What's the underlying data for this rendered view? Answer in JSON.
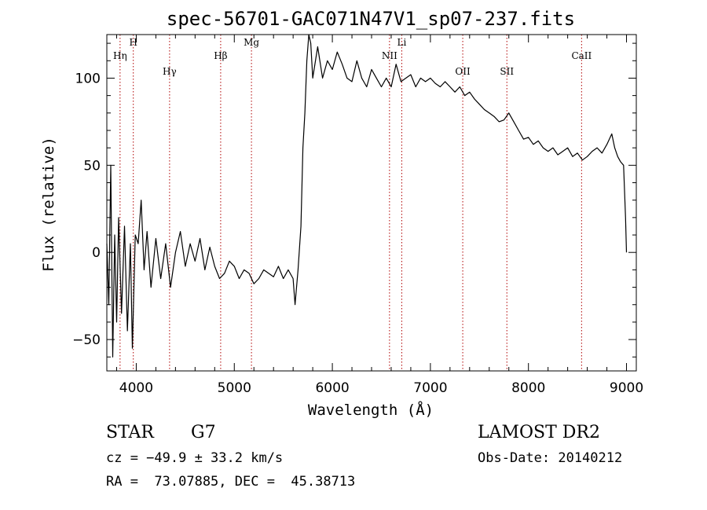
{
  "chart_data": {
    "type": "line",
    "title": "spec-56701-GAC071N47V1_sp07-237.fits",
    "xlabel": "Wavelength (Å)",
    "ylabel": "Flux (relative)",
    "xlim": [
      3700,
      9100
    ],
    "ylim": [
      -68,
      125
    ],
    "xticks": [
      4000,
      5000,
      6000,
      7000,
      8000,
      9000
    ],
    "yticks": [
      -50,
      0,
      50,
      100
    ],
    "grid": false,
    "series": [
      {
        "points": [
          [
            3700,
            5
          ],
          [
            3720,
            -30
          ],
          [
            3740,
            50
          ],
          [
            3760,
            -60
          ],
          [
            3780,
            10
          ],
          [
            3800,
            -40
          ],
          [
            3820,
            20
          ],
          [
            3850,
            -35
          ],
          [
            3880,
            15
          ],
          [
            3910,
            -45
          ],
          [
            3940,
            5
          ],
          [
            3960,
            -55
          ],
          [
            3990,
            10
          ],
          [
            4020,
            5
          ],
          [
            4050,
            30
          ],
          [
            4080,
            -10
          ],
          [
            4110,
            12
          ],
          [
            4150,
            -20
          ],
          [
            4200,
            8
          ],
          [
            4250,
            -15
          ],
          [
            4300,
            5
          ],
          [
            4350,
            -20
          ],
          [
            4400,
            0
          ],
          [
            4450,
            12
          ],
          [
            4500,
            -8
          ],
          [
            4550,
            5
          ],
          [
            4600,
            -5
          ],
          [
            4650,
            8
          ],
          [
            4700,
            -10
          ],
          [
            4750,
            3
          ],
          [
            4800,
            -8
          ],
          [
            4850,
            -15
          ],
          [
            4900,
            -12
          ],
          [
            4950,
            -5
          ],
          [
            5000,
            -8
          ],
          [
            5050,
            -15
          ],
          [
            5100,
            -10
          ],
          [
            5150,
            -12
          ],
          [
            5200,
            -18
          ],
          [
            5250,
            -15
          ],
          [
            5300,
            -10
          ],
          [
            5350,
            -12
          ],
          [
            5400,
            -14
          ],
          [
            5450,
            -8
          ],
          [
            5500,
            -15
          ],
          [
            5550,
            -10
          ],
          [
            5600,
            -15
          ],
          [
            5620,
            -30
          ],
          [
            5650,
            -10
          ],
          [
            5680,
            15
          ],
          [
            5700,
            60
          ],
          [
            5720,
            80
          ],
          [
            5740,
            110
          ],
          [
            5760,
            125
          ],
          [
            5780,
            120
          ],
          [
            5800,
            100
          ],
          [
            5850,
            118
          ],
          [
            5900,
            100
          ],
          [
            5950,
            110
          ],
          [
            6000,
            105
          ],
          [
            6050,
            115
          ],
          [
            6100,
            108
          ],
          [
            6150,
            100
          ],
          [
            6200,
            98
          ],
          [
            6250,
            110
          ],
          [
            6300,
            100
          ],
          [
            6350,
            95
          ],
          [
            6400,
            105
          ],
          [
            6450,
            100
          ],
          [
            6500,
            95
          ],
          [
            6550,
            100
          ],
          [
            6600,
            95
          ],
          [
            6650,
            108
          ],
          [
            6700,
            98
          ],
          [
            6750,
            100
          ],
          [
            6800,
            102
          ],
          [
            6850,
            95
          ],
          [
            6900,
            100
          ],
          [
            6950,
            98
          ],
          [
            7000,
            100
          ],
          [
            7050,
            97
          ],
          [
            7100,
            95
          ],
          [
            7150,
            98
          ],
          [
            7200,
            95
          ],
          [
            7250,
            92
          ],
          [
            7300,
            95
          ],
          [
            7350,
            90
          ],
          [
            7400,
            92
          ],
          [
            7450,
            88
          ],
          [
            7500,
            85
          ],
          [
            7550,
            82
          ],
          [
            7600,
            80
          ],
          [
            7650,
            78
          ],
          [
            7700,
            75
          ],
          [
            7750,
            76
          ],
          [
            7800,
            80
          ],
          [
            7850,
            75
          ],
          [
            7900,
            70
          ],
          [
            7950,
            65
          ],
          [
            8000,
            66
          ],
          [
            8050,
            62
          ],
          [
            8100,
            64
          ],
          [
            8150,
            60
          ],
          [
            8200,
            58
          ],
          [
            8250,
            60
          ],
          [
            8300,
            56
          ],
          [
            8350,
            58
          ],
          [
            8400,
            60
          ],
          [
            8450,
            55
          ],
          [
            8500,
            57
          ],
          [
            8550,
            53
          ],
          [
            8600,
            55
          ],
          [
            8650,
            58
          ],
          [
            8700,
            60
          ],
          [
            8750,
            57
          ],
          [
            8800,
            62
          ],
          [
            8850,
            68
          ],
          [
            8880,
            60
          ],
          [
            8910,
            55
          ],
          [
            8940,
            52
          ],
          [
            8970,
            50
          ],
          [
            8990,
            20
          ],
          [
            9000,
            0
          ]
        ]
      }
    ],
    "line_markers": [
      {
        "label": "Hη",
        "x": 3835
      },
      {
        "label": "H",
        "x": 3970
      },
      {
        "label": "Hγ",
        "x": 4340
      },
      {
        "label": "Hβ",
        "x": 4861
      },
      {
        "label": "Mg",
        "x": 5175
      },
      {
        "label": "NII",
        "x": 6583
      },
      {
        "label": "Li",
        "x": 6708
      },
      {
        "label": "OII",
        "x": 7330
      },
      {
        "label": "SII",
        "x": 7780
      },
      {
        "label": "CaII",
        "x": 8542
      }
    ]
  },
  "info": {
    "class": "STAR",
    "subclass": "G7",
    "survey": "LAMOST DR2",
    "cz": "cz = −49.9 ± 33.2 km/s",
    "obs_date": "Obs-Date: 20140212",
    "coords": "RA =  73.07885, DEC =  45.38713"
  },
  "colors": {
    "line": "#000000",
    "marker": "#b00000"
  }
}
